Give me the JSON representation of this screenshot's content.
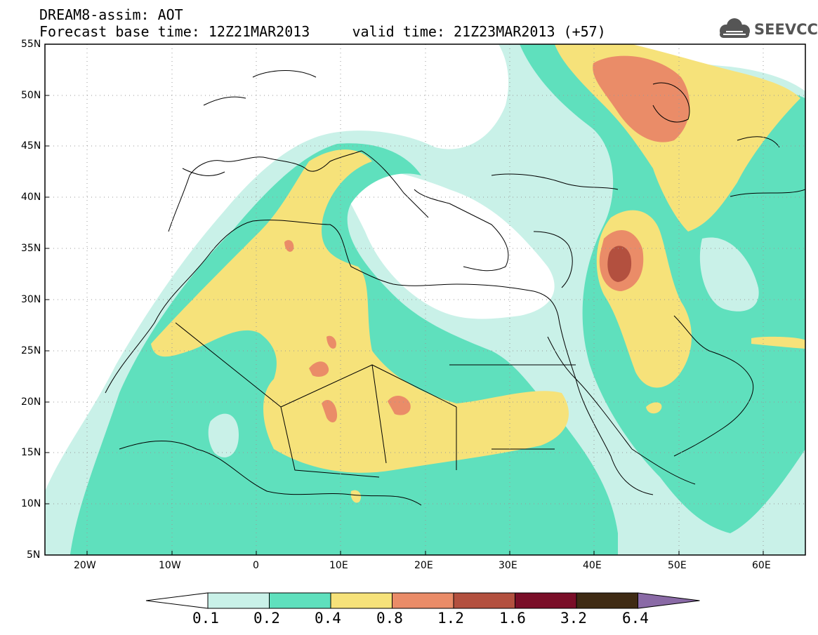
{
  "header": {
    "line1": "DREAM8-assim: AOT",
    "line2": "Forecast base time: 12Z21MAR2013     valid time: 21Z23MAR2013 (+57)"
  },
  "logo": {
    "text": "SEEVCCC",
    "icon": "cloud-icon"
  },
  "map": {
    "lon_range": [
      -25,
      65
    ],
    "lat_range": [
      5,
      55
    ],
    "lat_labels": [
      "55N",
      "50N",
      "45N",
      "40N",
      "35N",
      "30N",
      "25N",
      "20N",
      "15N",
      "10N",
      "5N"
    ],
    "lon_labels": [
      "20W",
      "10W",
      "0",
      "10E",
      "20E",
      "30E",
      "40E",
      "50E",
      "60E"
    ],
    "grid": "dotted"
  },
  "colorbar": {
    "labels": [
      "0.1",
      "0.2",
      "0.4",
      "0.8",
      "1.2",
      "1.6",
      "3.2",
      "6.4"
    ],
    "colors": [
      "#ffffff",
      "#c9f1e8",
      "#5fe0bd",
      "#f6e27a",
      "#ea8c68",
      "#b3503f",
      "#7a0e28",
      "#3f2b14",
      "#8a6aa6"
    ]
  }
}
